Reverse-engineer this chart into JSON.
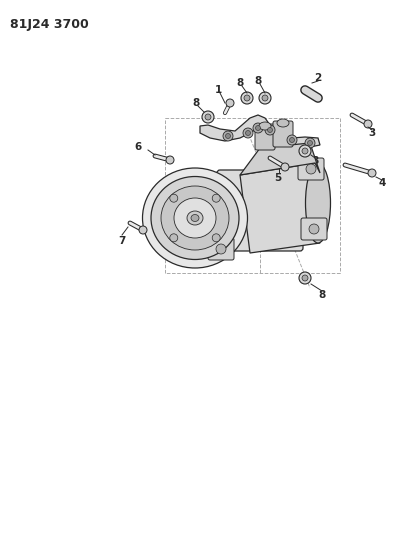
{
  "title": "81J24 3700",
  "bg_color": "#ffffff",
  "line_color": "#2a2a2a",
  "dashed_color": "#aaaaaa",
  "gray_fill": "#d8d8d8",
  "gray_mid": "#bbbbbb",
  "gray_dark": "#888888",
  "title_fontsize": 9,
  "label_fontsize": 7.5
}
